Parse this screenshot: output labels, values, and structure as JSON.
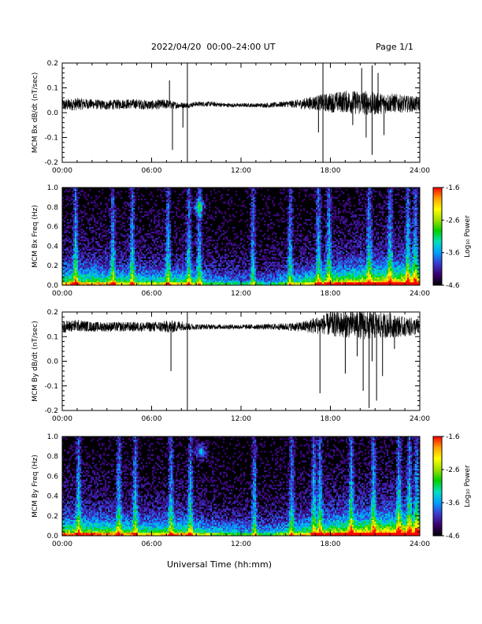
{
  "header": {
    "title": "2022/04/20  00:00–24:00 UT",
    "page": "Page 1/1"
  },
  "x_axis_label": "Universal Time (hh:mm)",
  "colors": {
    "trace": "#000000",
    "spec_background": "#000000",
    "colorbar": [
      "#000000",
      "#3a006e",
      "#3a3ad0",
      "#00a0ff",
      "#00e0c0",
      "#00d000",
      "#a0e000",
      "#ffff00",
      "#ffa000",
      "#ff0000"
    ]
  },
  "chart_data": [
    {
      "type": "line",
      "ylabel": "MCM Bx dB/dt (nT/sec)",
      "xlim": [
        0,
        24
      ],
      "ylim": [
        -0.2,
        0.2
      ],
      "xticks": [
        "00:00",
        "06:00",
        "12:00",
        "18:00",
        "24:00"
      ],
      "yticks": [
        "-0.2",
        "-0.1",
        "0.0",
        "0.1",
        "0.2"
      ],
      "x": [
        0,
        1,
        2,
        3,
        4,
        5,
        6,
        7,
        7.5,
        8,
        8.5,
        9,
        10,
        11,
        12,
        13,
        14,
        15,
        16,
        17,
        17.5,
        18,
        19,
        20,
        20.5,
        21,
        22,
        23,
        24
      ],
      "baseline": [
        0.03,
        0.035,
        0.035,
        0.03,
        0.035,
        0.035,
        0.03,
        0.035,
        0.03,
        0.03,
        0.03,
        0.035,
        0.035,
        0.03,
        0.03,
        0.03,
        0.03,
        0.035,
        0.035,
        0.04,
        0.04,
        0.04,
        0.045,
        0.04,
        0.04,
        0.035,
        0.04,
        0.035,
        0.035
      ],
      "spread": [
        0.025,
        0.025,
        0.02,
        0.02,
        0.02,
        0.02,
        0.02,
        0.02,
        0.015,
        0.012,
        0.01,
        0.01,
        0.01,
        0.008,
        0.008,
        0.008,
        0.01,
        0.012,
        0.02,
        0.03,
        0.035,
        0.04,
        0.045,
        0.05,
        0.05,
        0.045,
        0.04,
        0.035,
        0.03
      ],
      "spikes": [
        [
          7.2,
          0.13
        ],
        [
          7.4,
          -0.15
        ],
        [
          8.1,
          -0.06
        ],
        [
          8.4,
          0.2
        ],
        [
          8.4,
          -0.2
        ],
        [
          17.2,
          -0.08
        ],
        [
          17.5,
          0.2
        ],
        [
          17.5,
          -0.2
        ],
        [
          19.5,
          -0.05
        ],
        [
          20.1,
          0.18
        ],
        [
          20.4,
          -0.1
        ],
        [
          20.8,
          0.19
        ],
        [
          20.8,
          -0.17
        ],
        [
          21.2,
          0.16
        ],
        [
          21.6,
          -0.09
        ]
      ]
    },
    {
      "type": "heatmap",
      "ylabel": "MCM Bx Freq (Hz)",
      "xlim": [
        0,
        24
      ],
      "ylim": [
        0,
        1
      ],
      "xticks": [
        "00:00",
        "06:00",
        "12:00",
        "18:00",
        "24:00"
      ],
      "yticks": [
        "0.0",
        "0.2",
        "0.4",
        "0.6",
        "0.8",
        "1.0"
      ],
      "colorbar": {
        "label": "Log₁₀ Power",
        "ticks": [
          "-1.6",
          "-2.6",
          "-3.6",
          "-4.6"
        ],
        "range": [
          -4.6,
          -1.6
        ]
      },
      "activity_x": [
        0,
        2,
        4,
        6,
        8,
        10,
        12,
        14,
        16,
        18,
        20,
        22,
        24
      ],
      "activity": [
        0.55,
        0.55,
        0.5,
        0.45,
        0.5,
        0.35,
        0.3,
        0.3,
        0.45,
        0.6,
        0.7,
        0.75,
        0.75
      ],
      "streaks": [
        0.9,
        3.4,
        4.7,
        7.1,
        8.5,
        9.2,
        12.8,
        15.3,
        17.2,
        17.9,
        20.6,
        22.0,
        23.2,
        23.7
      ],
      "blob": {
        "x": 9.2,
        "f": 0.8
      }
    },
    {
      "type": "line",
      "ylabel": "MCM By dB/dt (nT/sec)",
      "xlim": [
        0,
        24
      ],
      "ylim": [
        -0.2,
        0.2
      ],
      "xticks": [
        "00:00",
        "06:00",
        "12:00",
        "18:00",
        "24:00"
      ],
      "yticks": [
        "-0.2",
        "-0.1",
        "0.0",
        "0.1",
        "0.2"
      ],
      "x": [
        0,
        1,
        2,
        3,
        4,
        5,
        6,
        7,
        7.5,
        8,
        8.5,
        9,
        10,
        11,
        12,
        13,
        14,
        15,
        16,
        17,
        17.5,
        18,
        19,
        20,
        20.5,
        21,
        22,
        23,
        24
      ],
      "baseline": [
        0.14,
        0.145,
        0.14,
        0.14,
        0.14,
        0.14,
        0.14,
        0.14,
        0.14,
        0.145,
        0.14,
        0.14,
        0.14,
        0.14,
        0.14,
        0.14,
        0.14,
        0.14,
        0.14,
        0.145,
        0.15,
        0.15,
        0.15,
        0.15,
        0.145,
        0.145,
        0.145,
        0.14,
        0.14
      ],
      "spread": [
        0.025,
        0.025,
        0.02,
        0.02,
        0.02,
        0.02,
        0.02,
        0.025,
        0.025,
        0.02,
        0.015,
        0.012,
        0.01,
        0.01,
        0.01,
        0.01,
        0.012,
        0.015,
        0.02,
        0.035,
        0.04,
        0.05,
        0.055,
        0.06,
        0.06,
        0.055,
        0.05,
        0.04,
        0.035
      ],
      "spikes": [
        [
          7.3,
          -0.04
        ],
        [
          8.4,
          0.2
        ],
        [
          8.4,
          -0.2
        ],
        [
          17.3,
          -0.13
        ],
        [
          19.0,
          -0.05
        ],
        [
          19.8,
          0.02
        ],
        [
          20.2,
          -0.12
        ],
        [
          20.6,
          -0.19
        ],
        [
          20.8,
          0.0
        ],
        [
          21.1,
          -0.16
        ],
        [
          21.5,
          -0.06
        ],
        [
          22.3,
          0.05
        ]
      ]
    },
    {
      "type": "heatmap",
      "ylabel": "MCM By Freq (Hz)",
      "xlim": [
        0,
        24
      ],
      "ylim": [
        0,
        1
      ],
      "xticks": [
        "00:00",
        "06:00",
        "12:00",
        "18:00",
        "24:00"
      ],
      "yticks": [
        "0.0",
        "0.2",
        "0.4",
        "0.6",
        "0.8",
        "1.0"
      ],
      "colorbar": {
        "label": "Log₁₀ Power",
        "ticks": [
          "-1.6",
          "-2.6",
          "-3.6",
          "-4.6"
        ],
        "range": [
          -4.6,
          -1.6
        ]
      },
      "activity_x": [
        0,
        2,
        4,
        6,
        8,
        10,
        12,
        14,
        16,
        18,
        20,
        22,
        24
      ],
      "activity": [
        0.6,
        0.6,
        0.55,
        0.5,
        0.55,
        0.4,
        0.35,
        0.35,
        0.5,
        0.65,
        0.75,
        0.8,
        0.8
      ],
      "streaks": [
        1.1,
        3.8,
        4.9,
        7.3,
        8.6,
        12.9,
        15.4,
        16.9,
        17.3,
        19.4,
        20.9,
        22.6,
        23.3,
        23.8
      ],
      "blob": {
        "x": 9.3,
        "f": 0.85
      }
    }
  ]
}
